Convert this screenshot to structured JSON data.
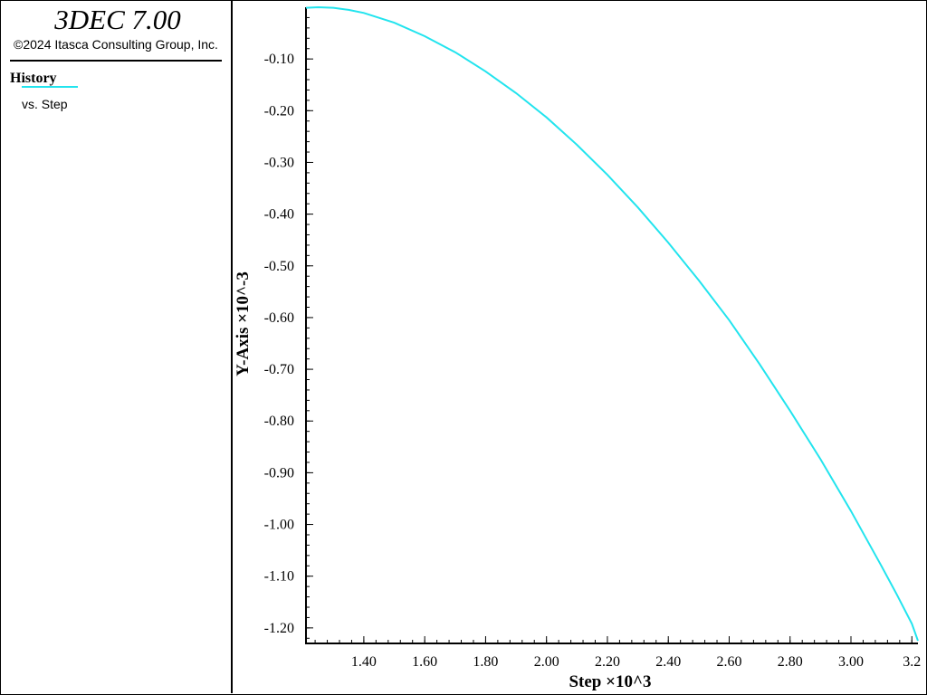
{
  "legend": {
    "app_title": "3DEC 7.00",
    "copyright": "©2024 Itasca Consulting Group, Inc.",
    "history_heading": "History",
    "series_label": "vs. Step"
  },
  "colors": {
    "series": "#22e4ee",
    "axis": "#000000",
    "background": "#ffffff"
  },
  "chart_data": {
    "type": "line",
    "title": "",
    "xlabel": "Step ×10^3",
    "ylabel": "Y-Axis ×10^-3",
    "grid": false,
    "xlim": [
      1.21,
      3.22
    ],
    "ylim": [
      -1.23,
      0.0
    ],
    "xticks": [
      1.4,
      1.6,
      1.8,
      2.0,
      2.2,
      2.4,
      2.6,
      2.8,
      3.0,
      3.2
    ],
    "xtick_labels": [
      "1.40",
      "1.60",
      "1.80",
      "2.00",
      "2.20",
      "2.40",
      "2.60",
      "2.80",
      "3.00",
      "3.2"
    ],
    "yticks": [
      -0.1,
      -0.2,
      -0.3,
      -0.4,
      -0.5,
      -0.6,
      -0.7,
      -0.8,
      -0.9,
      -1.0,
      -1.1,
      -1.2
    ],
    "ytick_labels": [
      "-0.10",
      "-0.20",
      "-0.30",
      "-0.40",
      "-0.50",
      "-0.60",
      "-0.70",
      "-0.80",
      "-0.90",
      "-1.00",
      "-1.10",
      "-1.20"
    ],
    "series": [
      {
        "x": [
          1.21,
          1.25,
          1.3,
          1.35,
          1.4,
          1.5,
          1.6,
          1.7,
          1.8,
          1.9,
          2.0,
          2.1,
          2.2,
          2.3,
          2.4,
          2.5,
          2.6,
          2.7,
          2.8,
          2.9,
          3.0,
          3.1,
          3.15,
          3.2,
          3.22
        ],
        "y": [
          -0.001,
          0.0,
          -0.001,
          -0.005,
          -0.011,
          -0.03,
          -0.056,
          -0.087,
          -0.124,
          -0.166,
          -0.213,
          -0.266,
          -0.324,
          -0.387,
          -0.455,
          -0.528,
          -0.605,
          -0.69,
          -0.78,
          -0.874,
          -0.974,
          -1.08,
          -1.135,
          -1.192,
          -1.225
        ]
      }
    ]
  }
}
